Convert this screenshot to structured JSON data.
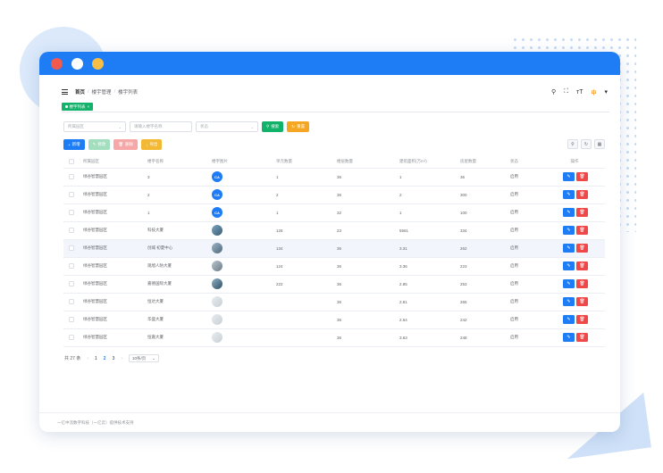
{
  "breadcrumb": [
    "首页",
    "楼宇管理",
    "楼宇列表"
  ],
  "header": {
    "lang_label": "中"
  },
  "tags": [
    {
      "label": "楼宇列表"
    }
  ],
  "filters": {
    "community_placeholder": "所属园区",
    "building_placeholder": "请输入楼宇名称",
    "status_placeholder": "状态",
    "search_label": "搜索",
    "reset_label": "重置"
  },
  "actions": {
    "add": "新增",
    "edit": "修改",
    "delete": "删除",
    "export": "导出"
  },
  "table": {
    "columns": [
      "所属园区",
      "楼宇名称",
      "楼宇图片",
      "单元数量",
      "楼层数量",
      "建筑面积(万m²)",
      "房屋数量",
      "状态",
      "操作"
    ],
    "rows": [
      {
        "park": "绿谷智慧园区",
        "name": "3",
        "thumb": "CA",
        "units": "1",
        "floors": "36",
        "area": "1",
        "rooms": "36",
        "status": "启用"
      },
      {
        "park": "绿谷智慧园区",
        "name": "2",
        "thumb": "CA",
        "units": "2",
        "floors": "36",
        "area": "2",
        "rooms": "300",
        "status": "启用"
      },
      {
        "park": "绿谷智慧园区",
        "name": "1",
        "thumb": "CA",
        "units": "1",
        "floors": "32",
        "area": "1",
        "rooms": "100",
        "status": "启用"
      },
      {
        "park": "绿谷智慧园区",
        "name": "科技大厦",
        "thumb": "",
        "units": "126",
        "floors": "23",
        "area": "5561",
        "rooms": "334",
        "status": "启用"
      },
      {
        "park": "绿谷智慧园区",
        "name": "创城 初夏中心",
        "thumb": "",
        "units": "134",
        "floors": "36",
        "area": "3.31",
        "rooms": "262",
        "status": "启用"
      },
      {
        "park": "绿谷智慧园区",
        "name": "观旭人防大厦",
        "thumb": "",
        "units": "124",
        "floors": "36",
        "area": "3.36",
        "rooms": "223",
        "status": "启用"
      },
      {
        "park": "绿谷智慧园区",
        "name": "嘉德国际大厦",
        "thumb": "",
        "units": "222",
        "floors": "36",
        "area": "2.85",
        "rooms": "253",
        "status": "启用"
      },
      {
        "park": "绿谷智慧园区",
        "name": "恒达大厦",
        "thumb": "",
        "units": "",
        "floors": "36",
        "area": "2.81",
        "rooms": "265",
        "status": "启用"
      },
      {
        "park": "绿谷智慧园区",
        "name": "华盛大厦",
        "thumb": "",
        "units": "",
        "floors": "36",
        "area": "2.64",
        "rooms": "242",
        "status": "启用"
      },
      {
        "park": "绿谷智慧园区",
        "name": "恒嘉大厦",
        "thumb": "",
        "units": "",
        "floors": "36",
        "area": "3.63",
        "rooms": "248",
        "status": "启用"
      }
    ]
  },
  "pagination": {
    "total": "共 27 条",
    "pages": [
      "1",
      "2",
      "3"
    ],
    "current": "2",
    "page_size": "10条/页"
  },
  "footer": {
    "text": "一亿中流数字科技（一亿云）提供技术支持"
  },
  "colors": {
    "primary": "#1e7df5",
    "success": "#13b26b",
    "warning": "#f5a623",
    "danger": "#f04848"
  }
}
